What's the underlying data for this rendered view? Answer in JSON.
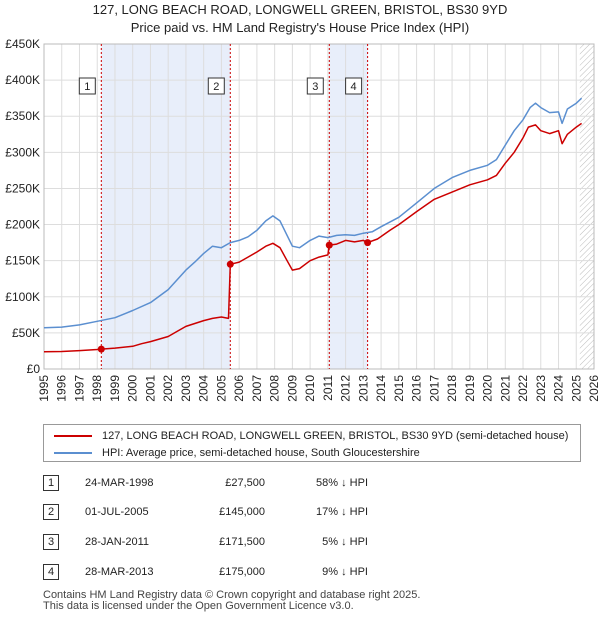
{
  "colors": {
    "property": "#cc0000",
    "hpi": "#5b8fd0",
    "shade": "#e8eefa",
    "grid": "#dddddd",
    "hatch": "#bbbbbb"
  },
  "title": {
    "line1": "127, LONG BEACH ROAD, LONGWELL GREEN, BRISTOL, BS30 9YD",
    "line2": "Price paid vs. HM Land Registry's House Price Index (HPI)"
  },
  "chart_data": {
    "type": "line",
    "title": "127, LONG BEACH ROAD, LONGWELL GREEN, BRISTOL, BS30 9YD — Price paid vs. HM Land Registry's House Price Index (HPI)",
    "xlim": [
      1995,
      2026
    ],
    "ylim": [
      0,
      450000
    ],
    "y_ticks": [
      {
        "value": 0,
        "label": "£0"
      },
      {
        "value": 50000,
        "label": "£50K"
      },
      {
        "value": 100000,
        "label": "£100K"
      },
      {
        "value": 150000,
        "label": "£150K"
      },
      {
        "value": 200000,
        "label": "£200K"
      },
      {
        "value": 250000,
        "label": "£250K"
      },
      {
        "value": 300000,
        "label": "£300K"
      },
      {
        "value": 350000,
        "label": "£350K"
      },
      {
        "value": 400000,
        "label": "£400K"
      },
      {
        "value": 450000,
        "label": "£450K"
      }
    ],
    "x_ticks": [
      1995,
      1996,
      1997,
      1998,
      1999,
      2000,
      2001,
      2002,
      2003,
      2004,
      2005,
      2006,
      2007,
      2008,
      2009,
      2010,
      2011,
      2012,
      2013,
      2014,
      2015,
      2016,
      2017,
      2018,
      2019,
      2020,
      2021,
      2022,
      2023,
      2024,
      2025,
      2026
    ],
    "shaded_ranges": [
      [
        1998.23,
        2005.5
      ],
      [
        2011.08,
        2013.24
      ]
    ],
    "future_from": 2025.2,
    "series": [
      {
        "name": "127, LONG BEACH ROAD, LONGWELL GREEN, BRISTOL, BS30 9YD (semi-detached house)",
        "key": "property",
        "points": [
          [
            1995.0,
            24000
          ],
          [
            1996.0,
            24200
          ],
          [
            1997.0,
            25500
          ],
          [
            1998.0,
            27000
          ],
          [
            1998.23,
            27500
          ],
          [
            1999.0,
            29000
          ],
          [
            2000.0,
            31500
          ],
          [
            2000.5,
            35000
          ],
          [
            2001.0,
            38000
          ],
          [
            2002.0,
            45000
          ],
          [
            2002.5,
            52000
          ],
          [
            2003.0,
            59000
          ],
          [
            2003.5,
            63000
          ],
          [
            2004.0,
            67000
          ],
          [
            2004.5,
            70000
          ],
          [
            2005.0,
            72000
          ],
          [
            2005.4,
            70000
          ],
          [
            2005.5,
            145000
          ],
          [
            2006.0,
            148000
          ],
          [
            2006.5,
            155000
          ],
          [
            2007.0,
            162000
          ],
          [
            2007.5,
            170000
          ],
          [
            2007.9,
            174000
          ],
          [
            2008.3,
            168000
          ],
          [
            2008.7,
            150000
          ],
          [
            2009.0,
            137000
          ],
          [
            2009.4,
            139000
          ],
          [
            2010.0,
            150000
          ],
          [
            2010.5,
            155000
          ],
          [
            2011.0,
            158000
          ],
          [
            2011.08,
            171500
          ],
          [
            2011.5,
            173000
          ],
          [
            2012.0,
            178000
          ],
          [
            2012.5,
            176000
          ],
          [
            2013.0,
            178000
          ],
          [
            2013.24,
            175000
          ],
          [
            2013.8,
            180000
          ],
          [
            2014.5,
            192000
          ],
          [
            2015.0,
            200000
          ],
          [
            2016.0,
            218000
          ],
          [
            2017.0,
            235000
          ],
          [
            2018.0,
            245000
          ],
          [
            2019.0,
            255000
          ],
          [
            2020.0,
            262000
          ],
          [
            2020.5,
            268000
          ],
          [
            2021.0,
            285000
          ],
          [
            2021.5,
            300000
          ],
          [
            2022.0,
            320000
          ],
          [
            2022.3,
            335000
          ],
          [
            2022.7,
            338000
          ],
          [
            2023.0,
            330000
          ],
          [
            2023.5,
            326000
          ],
          [
            2024.0,
            330000
          ],
          [
            2024.2,
            312000
          ],
          [
            2024.5,
            325000
          ],
          [
            2025.0,
            335000
          ],
          [
            2025.3,
            340000
          ]
        ]
      },
      {
        "name": "HPI: Average price, semi-detached house, South Gloucestershire",
        "key": "hpi",
        "points": [
          [
            1995.0,
            57000
          ],
          [
            1996.0,
            58000
          ],
          [
            1997.0,
            61000
          ],
          [
            1998.0,
            66000
          ],
          [
            1999.0,
            71000
          ],
          [
            2000.0,
            81000
          ],
          [
            2001.0,
            92000
          ],
          [
            2002.0,
            110000
          ],
          [
            2003.0,
            137000
          ],
          [
            2003.5,
            148000
          ],
          [
            2004.0,
            160000
          ],
          [
            2004.5,
            170000
          ],
          [
            2005.0,
            168000
          ],
          [
            2005.5,
            175000
          ],
          [
            2006.0,
            178000
          ],
          [
            2006.5,
            183000
          ],
          [
            2007.0,
            192000
          ],
          [
            2007.5,
            205000
          ],
          [
            2007.9,
            212000
          ],
          [
            2008.3,
            205000
          ],
          [
            2008.7,
            185000
          ],
          [
            2009.0,
            170000
          ],
          [
            2009.4,
            168000
          ],
          [
            2010.0,
            178000
          ],
          [
            2010.5,
            184000
          ],
          [
            2011.0,
            182000
          ],
          [
            2011.5,
            185000
          ],
          [
            2012.0,
            186000
          ],
          [
            2012.5,
            185000
          ],
          [
            2013.0,
            188000
          ],
          [
            2013.5,
            190000
          ],
          [
            2014.0,
            197000
          ],
          [
            2015.0,
            210000
          ],
          [
            2016.0,
            230000
          ],
          [
            2017.0,
            250000
          ],
          [
            2018.0,
            265000
          ],
          [
            2019.0,
            275000
          ],
          [
            2020.0,
            282000
          ],
          [
            2020.5,
            290000
          ],
          [
            2021.0,
            310000
          ],
          [
            2021.5,
            330000
          ],
          [
            2022.0,
            345000
          ],
          [
            2022.4,
            362000
          ],
          [
            2022.7,
            368000
          ],
          [
            2023.0,
            362000
          ],
          [
            2023.5,
            355000
          ],
          [
            2024.0,
            356000
          ],
          [
            2024.2,
            340000
          ],
          [
            2024.5,
            360000
          ],
          [
            2025.0,
            368000
          ],
          [
            2025.3,
            375000
          ]
        ]
      }
    ],
    "sales": [
      {
        "n": "1",
        "x": 1998.23,
        "y": 27500
      },
      {
        "n": "2",
        "x": 2005.5,
        "y": 145000
      },
      {
        "n": "3",
        "x": 2011.08,
        "y": 171500
      },
      {
        "n": "4",
        "x": 2013.24,
        "y": 175000
      }
    ]
  },
  "legend": {
    "property": "127, LONG BEACH ROAD, LONGWELL GREEN, BRISTOL, BS30 9YD (semi-detached house)",
    "hpi": "HPI: Average price, semi-detached house, South Gloucestershire"
  },
  "sales_table": [
    {
      "n": "1",
      "date": "24-MAR-1998",
      "price": "£27,500",
      "hpi": "58% ↓ HPI"
    },
    {
      "n": "2",
      "date": "01-JUL-2005",
      "price": "£145,000",
      "hpi": "17% ↓ HPI"
    },
    {
      "n": "3",
      "date": "28-JAN-2011",
      "price": "£171,500",
      "hpi": "5% ↓ HPI"
    },
    {
      "n": "4",
      "date": "28-MAR-2013",
      "price": "£175,000",
      "hpi": "9% ↓ HPI"
    }
  ],
  "footer": {
    "line1": "Contains HM Land Registry data © Crown copyright and database right 2025.",
    "line2": "This data is licensed under the Open Government Licence v3.0."
  }
}
